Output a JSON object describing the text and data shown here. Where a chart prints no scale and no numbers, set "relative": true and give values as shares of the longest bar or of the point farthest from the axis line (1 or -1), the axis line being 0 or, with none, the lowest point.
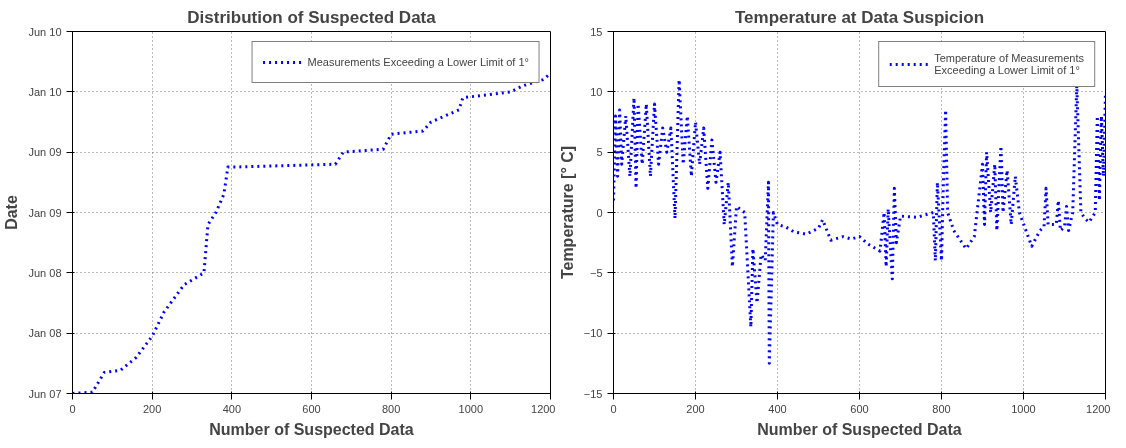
{
  "chart_data": [
    {
      "type": "line",
      "title": "Distribution of Suspected Data",
      "xlabel": "Number of Suspected Data",
      "ylabel": "Date",
      "x": [
        0,
        50,
        80,
        120,
        160,
        200,
        230,
        280,
        330,
        340,
        360,
        380,
        390,
        400,
        660,
        680,
        780,
        800,
        880,
        900,
        970,
        980,
        1100,
        1130,
        1180,
        1200
      ],
      "series": [
        {
          "name": "Measurements Exceeding a Lower Limit of 1°",
          "color": "#0000ff",
          "values": [
            0,
            0.004,
            0.066,
            0.072,
            0.113,
            0.179,
            0.255,
            0.34,
            0.377,
            0.528,
            0.566,
            0.623,
            0.708,
            0.708,
            0.717,
            0.755,
            0.764,
            0.811,
            0.821,
            0.849,
            0.887,
            0.925,
            0.943,
            0.962,
            0.981,
            1
          ]
        }
      ],
      "xlim": [
        0,
        1200
      ],
      "xticks": [
        0,
        200,
        400,
        600,
        800,
        1000,
        1200
      ],
      "relative": true,
      "ylim": [
        0,
        1.1321
      ],
      "annotations": [
        "Jun 07",
        "Jan 08",
        "Jun 08",
        "Jan 09",
        "Jun 09",
        "Jan 10",
        "Jun 10"
      ],
      "grid": true,
      "legend": "top right",
      "line_style": "dotted"
    },
    {
      "type": "line",
      "title": "Temperature at Data Suspicion",
      "xlabel": "Number of Suspected Data",
      "ylabel": "Temperature [° C]",
      "x": [
        0,
        5,
        10,
        15,
        20,
        30,
        40,
        50,
        55,
        60,
        70,
        80,
        90,
        100,
        110,
        120,
        130,
        140,
        150,
        160,
        170,
        180,
        190,
        200,
        210,
        220,
        230,
        240,
        250,
        260,
        270,
        280,
        290,
        300,
        320,
        335,
        340,
        350,
        360,
        370,
        378,
        380,
        390,
        400,
        420,
        440,
        470,
        500,
        510,
        530,
        560,
        580,
        600,
        620,
        650,
        660,
        665,
        670,
        680,
        685,
        690,
        700,
        740,
        780,
        785,
        790,
        800,
        805,
        810,
        815,
        830,
        860,
        880,
        900,
        905,
        910,
        920,
        930,
        935,
        945,
        950,
        960,
        970,
        980,
        990,
        1020,
        1040,
        1050,
        1055,
        1060,
        1080,
        1085,
        1090,
        1100,
        1105,
        1110,
        1120,
        1130,
        1140,
        1150,
        1160,
        1175,
        1180,
        1185,
        1190,
        1195,
        1200
      ],
      "series": [
        {
          "name": "Temperature of Measurements\nExceeding a Lower Limit of 1°",
          "color": "#0000ff",
          "values": [
            1,
            8,
            3,
            8.5,
            4,
            8,
            3,
            9.5,
            2,
            9,
            4,
            9,
            3,
            9,
            4,
            7,
            5,
            7,
            -0.5,
            11,
            4,
            8,
            3,
            7.5,
            4,
            7,
            2,
            6,
            2.5,
            5,
            -1,
            2.5,
            -4.5,
            0.5,
            0,
            -9.5,
            -3,
            -7.5,
            -3.5,
            -4,
            2.5,
            -12.5,
            0,
            -1,
            -1.2,
            -1.6,
            -1.8,
            -1.3,
            -0.6,
            -2.3,
            -2,
            -2.2,
            -2,
            -2.6,
            -3.2,
            0,
            -4.5,
            0.3,
            -5.5,
            2,
            -2.5,
            -0.3,
            -0.4,
            0,
            -4,
            2.5,
            -4,
            3,
            8.5,
            0,
            -1.5,
            -3,
            -2,
            4,
            -1,
            5,
            0,
            4,
            -1.5,
            5.5,
            0,
            3.5,
            -1,
            3,
            0,
            -2.8,
            -1.5,
            -1.2,
            2,
            -1,
            -1,
            1,
            -1.5,
            -1.2,
            0.5,
            -1.5,
            0,
            10.5,
            0,
            -0.5,
            -0.8,
            0,
            8,
            1,
            8,
            3,
            10
          ]
        }
      ],
      "xlim": [
        0,
        1200
      ],
      "xticks": [
        0,
        200,
        400,
        600,
        800,
        1000,
        1200
      ],
      "ylim": [
        -15,
        15
      ],
      "yticks": [
        -15,
        -10,
        -5,
        0,
        5,
        10,
        15
      ],
      "grid": true,
      "legend": "top right",
      "line_style": "dotted"
    }
  ]
}
